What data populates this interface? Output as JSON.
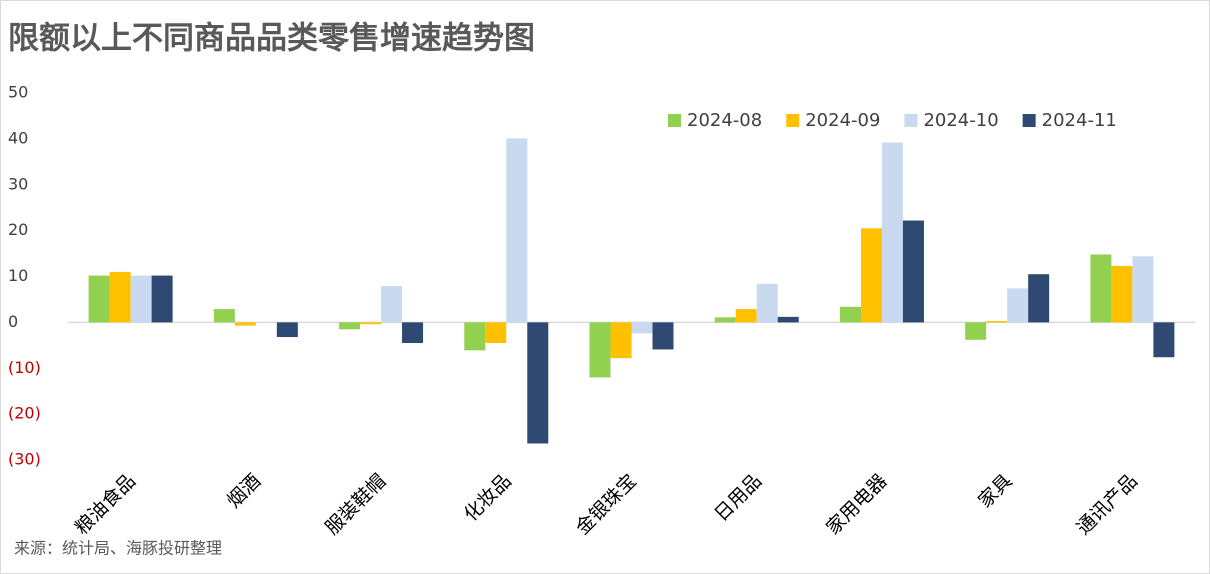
{
  "chart_data": {
    "type": "bar",
    "title": "限额以上不同商品品类零售增速趋势图",
    "source": "来源：统计局、海豚投研整理",
    "categories": [
      "粮油食品",
      "烟酒",
      "服装鞋帽",
      "化妆品",
      "金银珠宝",
      "日用品",
      "家用电器",
      "家具",
      "通讯产品"
    ],
    "series": [
      {
        "name": "2024-08",
        "color": "#92d050",
        "values": [
          10.2,
          2.9,
          -1.5,
          -6.1,
          -12.0,
          1.1,
          3.4,
          -3.8,
          14.8
        ]
      },
      {
        "name": "2024-09",
        "color": "#ffc000",
        "values": [
          11.0,
          -0.7,
          -0.4,
          -4.5,
          -7.8,
          2.9,
          20.5,
          0.3,
          12.3
        ]
      },
      {
        "name": "2024-10",
        "color": "#c9d9ef",
        "values": [
          10.2,
          0,
          7.9,
          40.1,
          -2.4,
          8.4,
          39.2,
          7.4,
          14.4
        ]
      },
      {
        "name": "2024-11",
        "color": "#2e4a73",
        "values": [
          10.2,
          -3.2,
          -4.5,
          -26.4,
          -5.9,
          1.2,
          22.2,
          10.5,
          -7.6
        ]
      }
    ],
    "ylim": [
      -30,
      50
    ],
    "yticks": [
      {
        "value": -30,
        "label": "(30)"
      },
      {
        "value": -20,
        "label": "(20)"
      },
      {
        "value": -10,
        "label": "(10)"
      },
      0,
      10,
      20,
      30,
      40,
      50
    ],
    "legend": "top-right"
  }
}
